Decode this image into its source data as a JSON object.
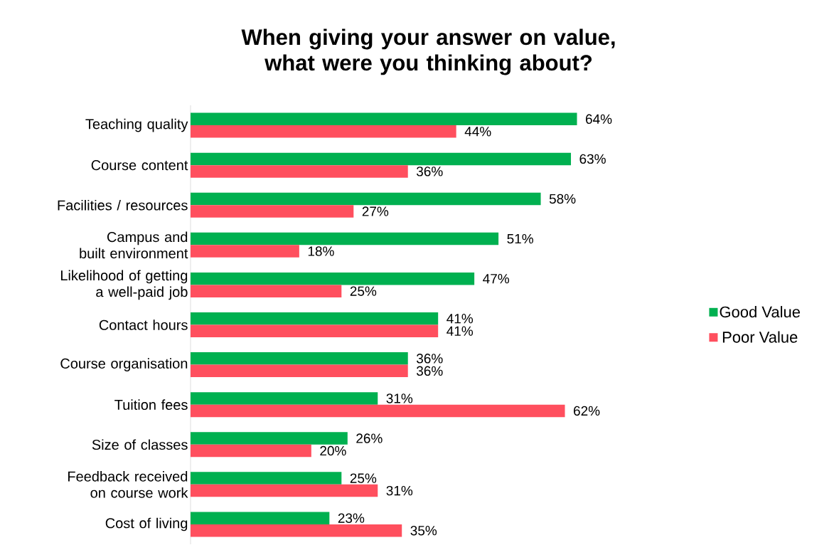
{
  "chart_data": {
    "type": "bar",
    "orientation": "horizontal",
    "title": "When giving your answer on value, what were you thinking about?",
    "categories": [
      "Teaching quality",
      "Course content",
      "Facilities / resources",
      "Campus and built environment",
      "Likelihood of getting a well-paid job",
      "Contact hours",
      "Course organisation",
      "Tuition fees",
      "Size of classes",
      "Feedback received on course work",
      "Cost of living"
    ],
    "series": [
      {
        "name": "Good Value",
        "color": "#00b050",
        "values": [
          64,
          63,
          58,
          51,
          47,
          41,
          36,
          31,
          26,
          25,
          23
        ],
        "value_labels": [
          "64%",
          "63%",
          "58%",
          "51%",
          "47%",
          "41%",
          "36%",
          "31%",
          "26%",
          "25%",
          "23%"
        ]
      },
      {
        "name": "Poor Value",
        "color": "#ff4f5e",
        "values": [
          44,
          36,
          27,
          18,
          25,
          41,
          36,
          62,
          20,
          31,
          35
        ],
        "value_labels": [
          "44%",
          "36%",
          "27%",
          "18%",
          "25%",
          "41%",
          "36%",
          "62%",
          "20%",
          "31%",
          "35%"
        ]
      }
    ],
    "legend": "right"
  }
}
